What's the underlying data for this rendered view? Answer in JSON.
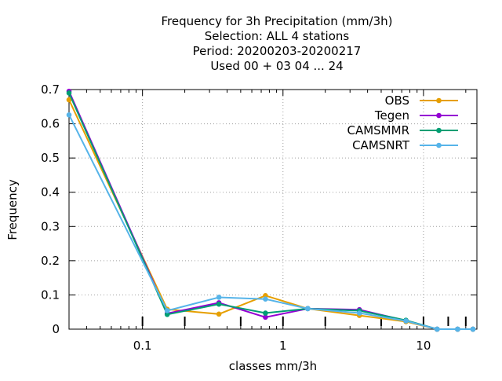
{
  "chart_data": {
    "type": "line",
    "title_lines": [
      "Frequency  for 3h Precipitation (mm/3h)",
      "Selection: ALL      4 stations",
      "Period: 20200203-20200217",
      "Used  00 + 03 04 ... 24"
    ],
    "xlabel": "classes mm/3h",
    "ylabel": "Frequency",
    "x_scale": "log",
    "xlim": [
      0.03,
      24
    ],
    "ylim": [
      0,
      0.7
    ],
    "grid": true,
    "legend_position": "top-right",
    "x_ticks": [
      {
        "value": 0.1,
        "label": "0.1"
      },
      {
        "value": 1,
        "label": "1"
      },
      {
        "value": 10,
        "label": "10"
      }
    ],
    "y_ticks": [
      {
        "value": 0,
        "label": "0"
      },
      {
        "value": 0.1,
        "label": "0.1"
      },
      {
        "value": 0.2,
        "label": "0.2"
      },
      {
        "value": 0.3,
        "label": "0.3"
      },
      {
        "value": 0.4,
        "label": "0.4"
      },
      {
        "value": 0.5,
        "label": "0.5"
      },
      {
        "value": 0.6,
        "label": "0.6"
      },
      {
        "value": 0.7,
        "label": "0.7"
      }
    ],
    "class_bounds": [
      0.1,
      0.2,
      0.5,
      1,
      2,
      5,
      10,
      15,
      20
    ],
    "x": [
      0.03,
      0.15,
      0.35,
      0.75,
      1.5,
      3.5,
      7.5,
      12.5,
      17.5,
      22.5
    ],
    "series": [
      {
        "name": "OBS",
        "color": "#e69f00",
        "marker": "circle",
        "values": [
          0.67,
          0.058,
          0.044,
          0.098,
          0.06,
          0.04,
          0.022,
          0.0,
          0.0,
          0.0
        ]
      },
      {
        "name": "Tegen",
        "color": "#9400d3",
        "marker": "circle",
        "values": [
          0.695,
          0.046,
          0.077,
          0.035,
          0.06,
          0.057,
          0.025,
          0.0,
          0.0,
          0.0
        ]
      },
      {
        "name": "CAMSMMR",
        "color": "#009e73",
        "marker": "circle",
        "values": [
          0.69,
          0.043,
          0.073,
          0.047,
          0.06,
          0.054,
          0.026,
          0.0,
          0.0,
          0.0
        ]
      },
      {
        "name": "CAMSNRT",
        "color": "#56b4e9",
        "marker": "circle",
        "values": [
          0.626,
          0.054,
          0.093,
          0.088,
          0.06,
          0.047,
          0.024,
          0.0,
          0.0,
          0.0
        ]
      }
    ]
  }
}
